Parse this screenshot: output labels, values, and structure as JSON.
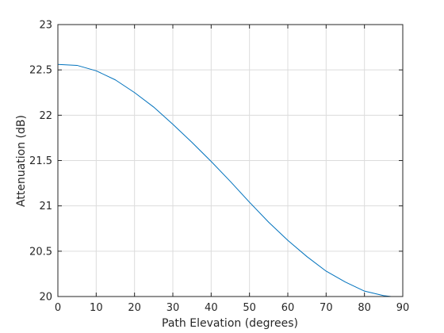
{
  "chart_data": {
    "type": "line",
    "xlabel": "Path Elevation (degrees)",
    "ylabel": "Attenuation (dB)",
    "xlim": [
      0,
      90
    ],
    "ylim": [
      20,
      23
    ],
    "xticks": [
      0,
      10,
      20,
      30,
      40,
      50,
      60,
      70,
      80,
      90
    ],
    "yticks": [
      20,
      20.5,
      21,
      21.5,
      22,
      22.5,
      23
    ],
    "xtick_labels": [
      "0",
      "10",
      "20",
      "30",
      "40",
      "50",
      "60",
      "70",
      "80",
      "90"
    ],
    "ytick_labels": [
      "20",
      "20.5",
      "21",
      "21.5",
      "22",
      "22.5",
      "23"
    ],
    "grid": true,
    "series": [
      {
        "color": "#0072bd",
        "x": [
          0,
          5,
          10,
          15,
          20,
          25,
          30,
          35,
          40,
          45,
          50,
          55,
          60,
          65,
          70,
          75,
          80,
          85,
          87
        ],
        "y": [
          22.56,
          22.55,
          22.49,
          22.39,
          22.25,
          22.09,
          21.9,
          21.7,
          21.49,
          21.27,
          21.04,
          20.82,
          20.62,
          20.44,
          20.28,
          20.16,
          20.06,
          20.01,
          20.0
        ]
      }
    ]
  }
}
